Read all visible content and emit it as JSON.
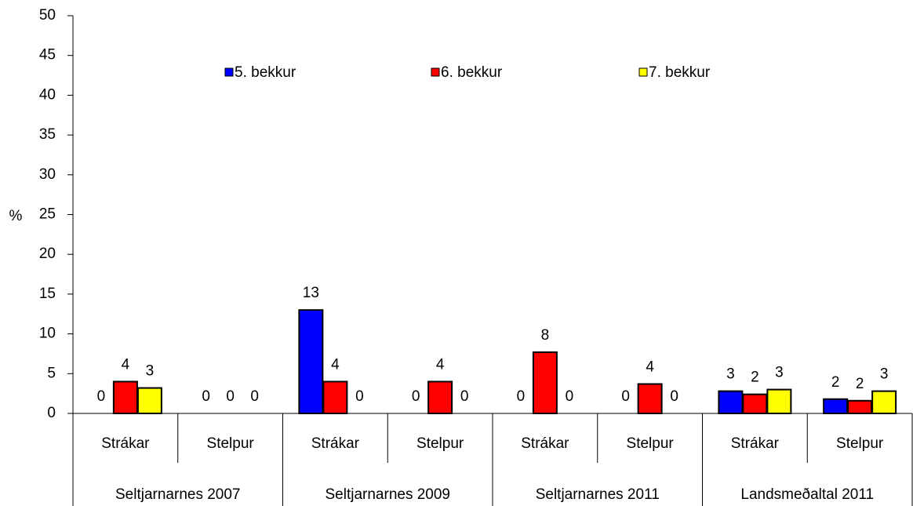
{
  "chart_data": {
    "type": "bar",
    "y_label": "%",
    "groups": [
      "Seltjarnarnes 2007",
      "Seltjarnarnes 2009",
      "Seltjarnarnes 2011",
      "Landsmeðaltal 2011"
    ],
    "categories": [
      "Strákar",
      "Stelpur",
      "Strákar",
      "Stelpur",
      "Strákar",
      "Stelpur",
      "Strákar",
      "Stelpur"
    ],
    "series": [
      {
        "name": "5. bekkur",
        "color": "#0000ff",
        "values": [
          0,
          0,
          13.0,
          0,
          0,
          0,
          2.8,
          1.8
        ],
        "value_labels": [
          "0",
          "0",
          "13",
          "0",
          "0",
          "0",
          "3",
          "2"
        ]
      },
      {
        "name": "6. bekkur",
        "color": "#ff0000",
        "values": [
          4.0,
          0,
          4.0,
          4.0,
          7.7,
          3.7,
          2.4,
          1.6
        ],
        "value_labels": [
          "4",
          "0",
          "4",
          "4",
          "8",
          "4",
          "2",
          "2"
        ]
      },
      {
        "name": "7. bekkur",
        "color": "#ffff00",
        "values": [
          3.2,
          0,
          0,
          0,
          0,
          0,
          3.0,
          2.8
        ],
        "value_labels": [
          "3",
          "0",
          "0",
          "0",
          "0",
          "0",
          "3",
          "3"
        ]
      }
    ],
    "ylim": [
      0,
      50
    ],
    "yticks": [
      0,
      5,
      10,
      15,
      20,
      25,
      30,
      35,
      40,
      45,
      50
    ],
    "legend": "top"
  }
}
